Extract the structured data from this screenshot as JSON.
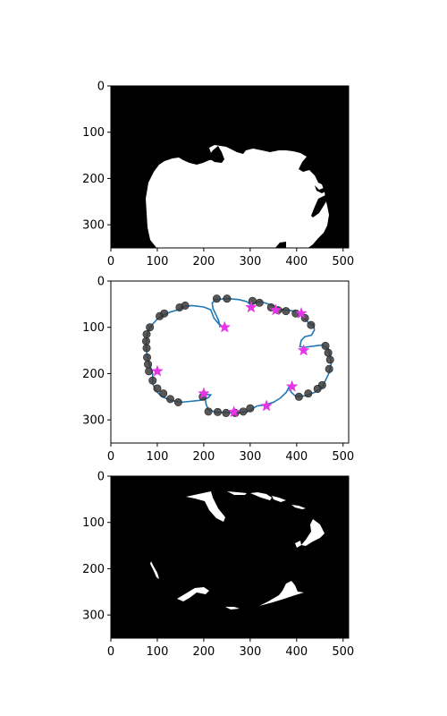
{
  "chart_data": [
    {
      "type": "image",
      "panel": "binary-mask",
      "xlim": [
        0,
        512
      ],
      "ylim": [
        350,
        0
      ],
      "xticks": [
        "0",
        "100",
        "200",
        "300",
        "400",
        "500"
      ],
      "yticks": [
        "0",
        "100",
        "200",
        "300"
      ],
      "background": "#000000",
      "foreground": "#ffffff"
    },
    {
      "type": "scatter",
      "panel": "contour-keypoints",
      "xlim": [
        0,
        512
      ],
      "ylim": [
        350,
        0
      ],
      "xticks": [
        "0",
        "100",
        "200",
        "300",
        "400",
        "500"
      ],
      "yticks": [
        "0",
        "100",
        "200",
        "300"
      ],
      "contour_color": "#1f77b4",
      "circle_color": "#3b3b3b",
      "star_color": "#e535e6",
      "contour": [
        [
          235,
          100
        ],
        [
          232,
          85
        ],
        [
          226,
          72
        ],
        [
          220,
          60
        ],
        [
          218,
          48
        ],
        [
          225,
          40
        ],
        [
          250,
          38
        ],
        [
          275,
          40
        ],
        [
          292,
          44
        ],
        [
          302,
          52
        ],
        [
          310,
          47
        ],
        [
          322,
          44
        ],
        [
          340,
          50
        ],
        [
          360,
          58
        ],
        [
          375,
          63
        ],
        [
          388,
          64
        ],
        [
          400,
          67
        ],
        [
          415,
          78
        ],
        [
          425,
          90
        ],
        [
          437,
          96
        ],
        [
          438,
          106
        ],
        [
          432,
          117
        ],
        [
          418,
          120
        ],
        [
          410,
          128
        ],
        [
          407,
          142
        ],
        [
          418,
          143
        ],
        [
          440,
          140
        ],
        [
          455,
          138
        ],
        [
          468,
          146
        ],
        [
          472,
          162
        ],
        [
          474,
          180
        ],
        [
          470,
          198
        ],
        [
          462,
          215
        ],
        [
          455,
          230
        ],
        [
          440,
          240
        ],
        [
          418,
          248
        ],
        [
          398,
          249
        ],
        [
          388,
          240
        ],
        [
          384,
          228
        ],
        [
          378,
          240
        ],
        [
          365,
          253
        ],
        [
          350,
          262
        ],
        [
          330,
          268
        ],
        [
          315,
          270
        ],
        [
          306,
          275
        ],
        [
          295,
          282
        ],
        [
          270,
          285
        ],
        [
          245,
          284
        ],
        [
          225,
          283
        ],
        [
          210,
          278
        ],
        [
          205,
          266
        ],
        [
          203,
          252
        ],
        [
          205,
          245
        ],
        [
          215,
          246
        ],
        [
          210,
          252
        ],
        [
          200,
          256
        ],
        [
          190,
          258
        ],
        [
          170,
          260
        ],
        [
          150,
          262
        ],
        [
          130,
          258
        ],
        [
          110,
          250
        ],
        [
          98,
          238
        ],
        [
          90,
          222
        ],
        [
          90,
          200
        ],
        [
          83,
          180
        ],
        [
          78,
          160
        ],
        [
          76,
          140
        ],
        [
          77,
          120
        ],
        [
          84,
          100
        ],
        [
          100,
          82
        ],
        [
          115,
          73
        ],
        [
          128,
          67
        ],
        [
          145,
          62
        ],
        [
          158,
          55
        ],
        [
          175,
          53
        ],
        [
          200,
          56
        ],
        [
          215,
          62
        ],
        [
          222,
          80
        ],
        [
          232,
          92
        ],
        [
          243,
          100
        ]
      ],
      "circles": [
        [
          228,
          38
        ],
        [
          250,
          38
        ],
        [
          305,
          43
        ],
        [
          320,
          47
        ],
        [
          345,
          57
        ],
        [
          360,
          63
        ],
        [
          377,
          65
        ],
        [
          398,
          70
        ],
        [
          418,
          80
        ],
        [
          431,
          95
        ],
        [
          462,
          140
        ],
        [
          468,
          155
        ],
        [
          472,
          170
        ],
        [
          470,
          190
        ],
        [
          455,
          225
        ],
        [
          445,
          233
        ],
        [
          425,
          243
        ],
        [
          405,
          250
        ],
        [
          300,
          275
        ],
        [
          285,
          282
        ],
        [
          268,
          285
        ],
        [
          248,
          285
        ],
        [
          230,
          283
        ],
        [
          210,
          282
        ],
        [
          198,
          250
        ],
        [
          145,
          262
        ],
        [
          128,
          255
        ],
        [
          113,
          243
        ],
        [
          100,
          232
        ],
        [
          90,
          215
        ],
        [
          82,
          195
        ],
        [
          80,
          180
        ],
        [
          78,
          165
        ],
        [
          77,
          145
        ],
        [
          76,
          130
        ],
        [
          77,
          115
        ],
        [
          84,
          100
        ],
        [
          105,
          76
        ],
        [
          115,
          70
        ],
        [
          148,
          57
        ],
        [
          160,
          53
        ]
      ],
      "stars": [
        [
          245,
          100
        ],
        [
          302,
          57
        ],
        [
          355,
          63
        ],
        [
          410,
          70
        ],
        [
          415,
          150
        ],
        [
          100,
          195
        ],
        [
          200,
          243
        ],
        [
          265,
          283
        ],
        [
          335,
          270
        ],
        [
          390,
          228
        ]
      ]
    },
    {
      "type": "image",
      "panel": "difference-mask",
      "xlim": [
        0,
        512
      ],
      "ylim": [
        350,
        0
      ],
      "xticks": [
        "0",
        "100",
        "200",
        "300",
        "400",
        "500"
      ],
      "yticks": [
        "0",
        "100",
        "200",
        "300"
      ],
      "background": "#000000",
      "foreground": "#ffffff"
    }
  ]
}
